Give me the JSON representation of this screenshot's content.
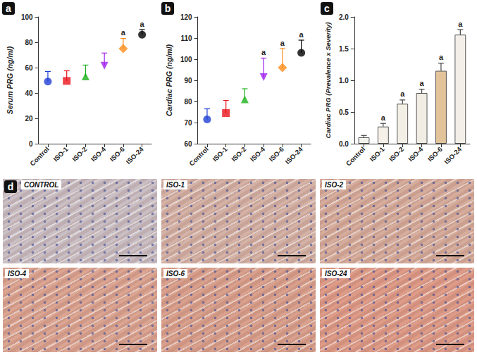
{
  "chart_data": [
    {
      "type": "scatter",
      "letter": "a",
      "y_label": "Serum PRG (ng/ml)",
      "categories": [
        "Control",
        "ISO-1",
        "ISO-2",
        "ISO-4",
        "ISO-6",
        "ISO-24"
      ],
      "values": [
        49,
        49.5,
        53,
        61.5,
        75,
        86
      ],
      "error": [
        8,
        8,
        9,
        10,
        8,
        4
      ],
      "significance": [
        null,
        null,
        null,
        null,
        "a",
        "a"
      ],
      "colors": [
        "#1f3fd6",
        "#e8141b",
        "#1ab21a",
        "#a020f0",
        "#ff8c1a",
        "#000000"
      ],
      "markers": [
        "circle",
        "square",
        "triangle",
        "triangle_down",
        "diamond",
        "circle"
      ],
      "ylim": [
        0,
        100
      ],
      "yticks": [
        0,
        20,
        40,
        60,
        80,
        100
      ],
      "grid": false
    },
    {
      "type": "scatter",
      "letter": "b",
      "y_label": "Cardiac PRG (ng/ml)",
      "categories": [
        "Control",
        "ISO-1",
        "ISO-2",
        "ISO-4",
        "ISO-6",
        "ISO-24"
      ],
      "values": [
        71.5,
        74.5,
        81,
        91.5,
        96,
        103
      ],
      "error": [
        5,
        6,
        5,
        9,
        9,
        6
      ],
      "significance": [
        null,
        null,
        null,
        "a",
        "a",
        "a"
      ],
      "colors": [
        "#1f3fd6",
        "#e8141b",
        "#1ab21a",
        "#a020f0",
        "#ff8c1a",
        "#000000"
      ],
      "markers": [
        "circle",
        "square",
        "triangle",
        "triangle_down",
        "diamond",
        "circle"
      ],
      "ylim": [
        60,
        120
      ],
      "yticks": [
        60,
        70,
        80,
        90,
        100,
        110,
        120
      ],
      "grid": false
    },
    {
      "type": "bar",
      "letter": "c",
      "y_label": "Cardiac PRG (Prevalence x Severity)",
      "categories": [
        "Control",
        "ISO-1",
        "ISO-2",
        "ISO-4",
        "ISO-6",
        "ISO-24"
      ],
      "values": [
        0.1,
        0.27,
        0.63,
        0.8,
        1.15,
        1.72
      ],
      "error": [
        0.03,
        0.05,
        0.06,
        0.06,
        0.12,
        0.08
      ],
      "significance": [
        null,
        "a",
        "a",
        "a",
        "a",
        "a"
      ],
      "colors": [
        "#f4f4ee",
        "#f6f1e8",
        "#f3efe6",
        "#f1ede4",
        "#e3c49a",
        "#f3efe8"
      ],
      "ylim": [
        0,
        2
      ],
      "yticks": [
        {
          "value": 0,
          "label": "0.0"
        },
        0.5,
        {
          "value": 1,
          "label": "1.0"
        },
        1.5,
        {
          "value": 2,
          "label": "2.0"
        }
      ],
      "grid": false
    }
  ],
  "micrographs": {
    "letter": "d",
    "panels": [
      {
        "label": "CONTROL"
      },
      {
        "label": "ISO-1"
      },
      {
        "label": "ISO-2"
      },
      {
        "label": "ISO-4"
      },
      {
        "label": "ISO-6"
      },
      {
        "label": "ISO-24"
      }
    ]
  }
}
